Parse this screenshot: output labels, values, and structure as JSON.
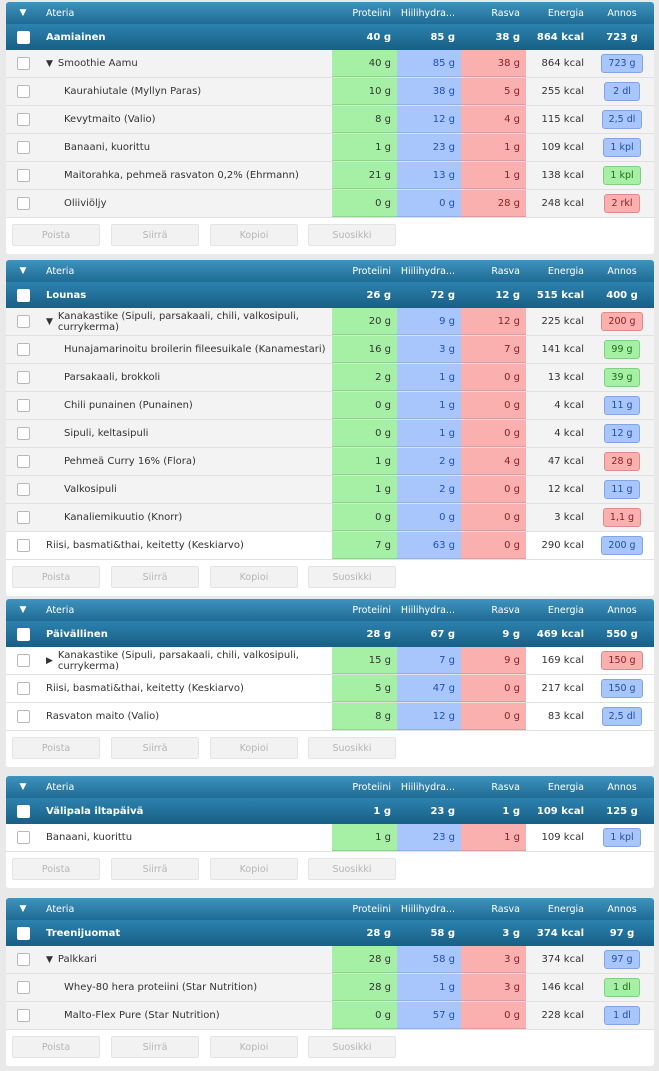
{
  "columns": {
    "meal": "Ateria",
    "protein": "Proteiini",
    "carbs": "Hiilihydra...",
    "fat": "Rasva",
    "energy": "Energia",
    "portion": "Annos"
  },
  "buttons": {
    "delete": "Poista",
    "move": "Siirrä",
    "copy": "Kopioi",
    "favorite": "Suosikki"
  },
  "colors": {
    "header": "#2a7fad",
    "protein": "#a6f0a6",
    "carbs": "#a8c6fb",
    "fat": "#fbb0b0"
  },
  "meals": [
    {
      "title": "Aamiainen",
      "protein": "40 g",
      "carbs": "85 g",
      "fat": "38 g",
      "energy": "864 kcal",
      "portion": "723 g",
      "items": [
        {
          "name": "Smoothie Aamu",
          "protein": "40 g",
          "carbs": "85 g",
          "fat": "38 g",
          "energy": "864 kcal",
          "portion": "723 g",
          "portion_color": "blue",
          "group": "open"
        },
        {
          "name": "Kaurahiutale (Myllyn Paras)",
          "protein": "10 g",
          "carbs": "38 g",
          "fat": "5 g",
          "energy": "255 kcal",
          "portion": "2 dl",
          "portion_color": "blue",
          "level": "sub"
        },
        {
          "name": "Kevytmaito (Valio)",
          "protein": "8 g",
          "carbs": "12 g",
          "fat": "4 g",
          "energy": "115 kcal",
          "portion": "2,5 dl",
          "portion_color": "blue",
          "level": "sub"
        },
        {
          "name": "Banaani, kuorittu",
          "protein": "1 g",
          "carbs": "23 g",
          "fat": "1 g",
          "energy": "109 kcal",
          "portion": "1 kpl",
          "portion_color": "blue",
          "level": "sub"
        },
        {
          "name": "Maitorahka, pehmeä rasvaton 0,2% (Ehrmann)",
          "protein": "21 g",
          "carbs": "13 g",
          "fat": "1 g",
          "energy": "138 kcal",
          "portion": "1 kpl",
          "portion_color": "green",
          "level": "sub"
        },
        {
          "name": "Oliiviöljy",
          "protein": "0 g",
          "carbs": "0 g",
          "fat": "28 g",
          "energy": "248 kcal",
          "portion": "2 rkl",
          "portion_color": "red",
          "level": "sub"
        }
      ]
    },
    {
      "title": "Lounas",
      "protein": "26 g",
      "carbs": "72 g",
      "fat": "12 g",
      "energy": "515 kcal",
      "portion": "400 g",
      "items": [
        {
          "name": "Kanakastike (Sipuli, parsakaali, chili, valkosipuli, currykerma)",
          "protein": "20 g",
          "carbs": "9 g",
          "fat": "12 g",
          "energy": "225 kcal",
          "portion": "200 g",
          "portion_color": "red",
          "group": "open"
        },
        {
          "name": "Hunajamarinoitu broilerin fileesuikale (Kanamestari)",
          "protein": "16 g",
          "carbs": "3 g",
          "fat": "7 g",
          "energy": "141 kcal",
          "portion": "99 g",
          "portion_color": "green",
          "level": "sub"
        },
        {
          "name": "Parsakaali, brokkoli",
          "protein": "2 g",
          "carbs": "1 g",
          "fat": "0 g",
          "energy": "13 kcal",
          "portion": "39 g",
          "portion_color": "green",
          "level": "sub"
        },
        {
          "name": "Chili punainen (Punainen)",
          "protein": "0 g",
          "carbs": "1 g",
          "fat": "0 g",
          "energy": "4 kcal",
          "portion": "11 g",
          "portion_color": "blue",
          "level": "sub"
        },
        {
          "name": "Sipuli, keltasipuli",
          "protein": "0 g",
          "carbs": "1 g",
          "fat": "0 g",
          "energy": "4 kcal",
          "portion": "12 g",
          "portion_color": "blue",
          "level": "sub"
        },
        {
          "name": "Pehmeä Curry 16% (Flora)",
          "protein": "1 g",
          "carbs": "2 g",
          "fat": "4 g",
          "energy": "47 kcal",
          "portion": "28 g",
          "portion_color": "red",
          "level": "sub"
        },
        {
          "name": "Valkosipuli",
          "protein": "1 g",
          "carbs": "2 g",
          "fat": "0 g",
          "energy": "12 kcal",
          "portion": "11 g",
          "portion_color": "blue",
          "level": "sub"
        },
        {
          "name": "Kanaliemikuutio (Knorr)",
          "protein": "0 g",
          "carbs": "0 g",
          "fat": "0 g",
          "energy": "3 kcal",
          "portion": "1,1 g",
          "portion_color": "red",
          "level": "sub"
        },
        {
          "name": "Riisi, basmati&thai, keitetty (Keskiarvo)",
          "protein": "7 g",
          "carbs": "63 g",
          "fat": "0 g",
          "energy": "290 kcal",
          "portion": "200 g",
          "portion_color": "blue",
          "level": "top",
          "plain": true
        }
      ]
    },
    {
      "title": "Päivällinen",
      "protein": "28 g",
      "carbs": "67 g",
      "fat": "9 g",
      "energy": "469 kcal",
      "portion": "550 g",
      "items": [
        {
          "name": "Kanakastike (Sipuli, parsakaali, chili, valkosipuli, currykerma)",
          "protein": "15 g",
          "carbs": "7 g",
          "fat": "9 g",
          "energy": "169 kcal",
          "portion": "150 g",
          "portion_color": "red",
          "group": "closed",
          "plain": true
        },
        {
          "name": "Riisi, basmati&thai, keitetty (Keskiarvo)",
          "protein": "5 g",
          "carbs": "47 g",
          "fat": "0 g",
          "energy": "217 kcal",
          "portion": "150 g",
          "portion_color": "blue",
          "level": "top",
          "plain": true
        },
        {
          "name": "Rasvaton maito (Valio)",
          "protein": "8 g",
          "carbs": "12 g",
          "fat": "0 g",
          "energy": "83 kcal",
          "portion": "2,5 dl",
          "portion_color": "blue",
          "level": "top",
          "plain": true
        }
      ]
    },
    {
      "title": "Välipala iltapäivä",
      "protein": "1 g",
      "carbs": "23 g",
      "fat": "1 g",
      "energy": "109 kcal",
      "portion": "125 g",
      "items": [
        {
          "name": "Banaani, kuorittu",
          "protein": "1 g",
          "carbs": "23 g",
          "fat": "1 g",
          "energy": "109 kcal",
          "portion": "1 kpl",
          "portion_color": "blue",
          "level": "top",
          "plain": true
        }
      ]
    },
    {
      "title": "Treenijuomat",
      "protein": "28 g",
      "carbs": "58 g",
      "fat": "3 g",
      "energy": "374 kcal",
      "portion": "97 g",
      "items": [
        {
          "name": "Palkkari",
          "protein": "28 g",
          "carbs": "58 g",
          "fat": "3 g",
          "energy": "374 kcal",
          "portion": "97 g",
          "portion_color": "blue",
          "group": "open"
        },
        {
          "name": "Whey-80 hera proteiini (Star Nutrition)",
          "protein": "28 g",
          "carbs": "1 g",
          "fat": "3 g",
          "energy": "146 kcal",
          "portion": "1 dl",
          "portion_color": "green",
          "level": "sub"
        },
        {
          "name": "Malto-Flex Pure (Star Nutrition)",
          "protein": "0 g",
          "carbs": "57 g",
          "fat": "0 g",
          "energy": "228 kcal",
          "portion": "1 dl",
          "portion_color": "blue",
          "level": "sub"
        }
      ]
    }
  ]
}
